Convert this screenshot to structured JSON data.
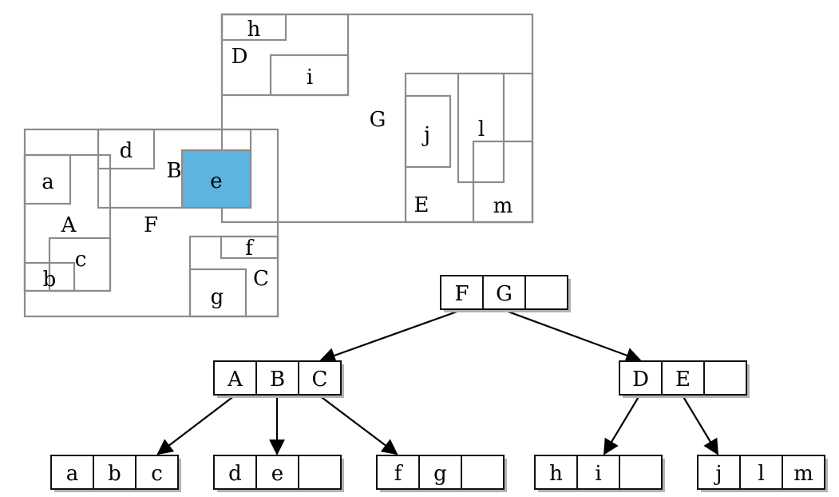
{
  "regions": {
    "G": "G",
    "D": "D",
    "h": "h",
    "i": "i",
    "E": "E",
    "j": "j",
    "l": "l",
    "m": "m",
    "F": "F",
    "A": "A",
    "a": "a",
    "b": "b",
    "c": "c",
    "B": "B",
    "d": "d",
    "e": "e",
    "C": "C",
    "f": "f",
    "g": "g"
  },
  "colors": {
    "region_stroke": "#8c8c8c",
    "highlight_fill": "#5db4e0",
    "node_stroke": "#111111",
    "node_fill": "#ffffff",
    "shadow": "#b3b3b3",
    "text": "#000000"
  },
  "tree": {
    "root": {
      "entries": [
        "F",
        "G",
        ""
      ]
    },
    "level1": [
      {
        "entries": [
          "A",
          "B",
          "C"
        ]
      },
      {
        "entries": [
          "D",
          "E",
          ""
        ]
      }
    ],
    "leaves": [
      {
        "entries": [
          "a",
          "b",
          "c"
        ]
      },
      {
        "entries": [
          "d",
          "e",
          ""
        ]
      },
      {
        "entries": [
          "f",
          "g",
          ""
        ]
      },
      {
        "entries": [
          "h",
          "i",
          ""
        ]
      },
      {
        "entries": [
          "j",
          "l",
          "m"
        ]
      }
    ]
  }
}
